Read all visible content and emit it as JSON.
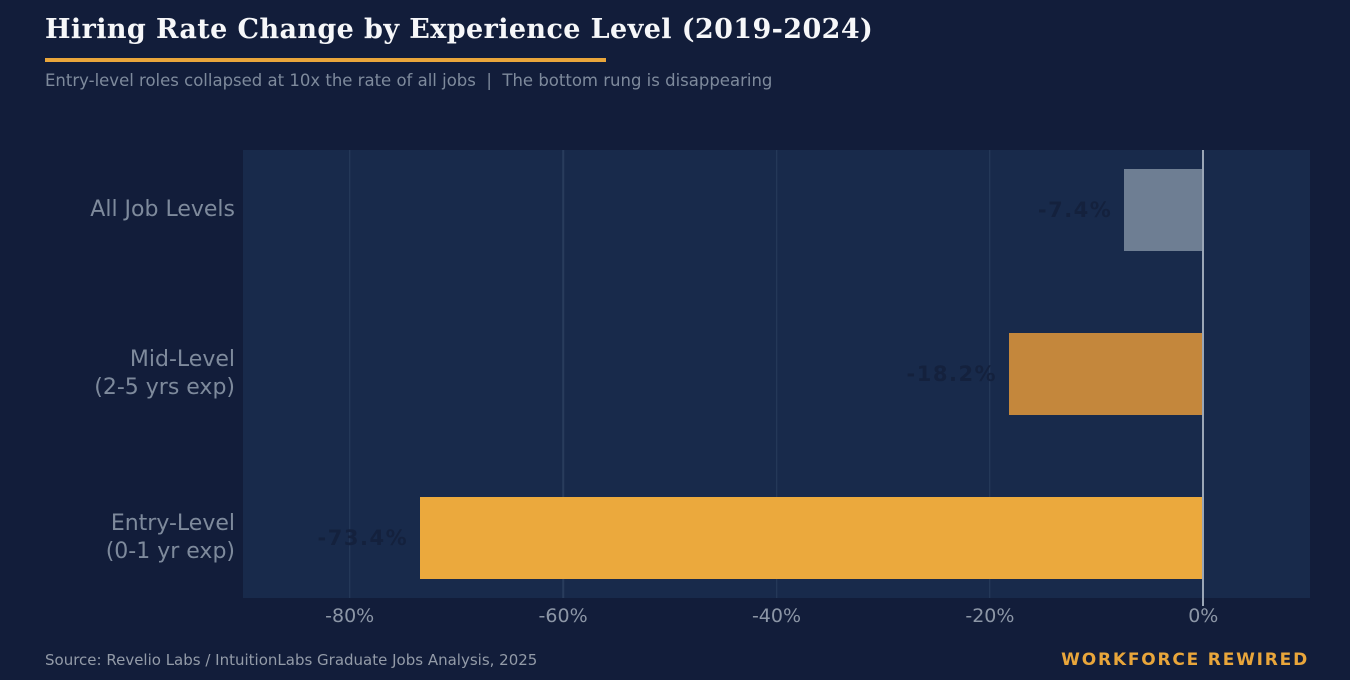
{
  "header": {
    "title": "Hiring Rate Change by Experience Level (2019-2024)",
    "subtitle": "Entry-level roles collapsed at 10x the rate of all jobs  |  The bottom rung is disappearing"
  },
  "footer": {
    "source": "Source: Revelio Labs / IntuitionLabs Graduate Jobs Analysis, 2025",
    "brand": "WORKFORCE REWIRED"
  },
  "colors": {
    "background": "#121D3A",
    "plot_background": "#182A4B",
    "accent_gold": "#E9A63B",
    "text_title": "#F6F7F9",
    "text_muted": "#7E8A9C",
    "value_label": "#14213D",
    "zero_line": "#9AA6B6",
    "bar_all_levels": "#6E7E93",
    "bar_mid_level": "#C4873C",
    "bar_entry_level": "#EBA93D"
  },
  "chart_data": {
    "type": "bar",
    "orientation": "horizontal",
    "title": "Hiring Rate Change by Experience Level (2019-2024)",
    "subtitle": "Entry-level roles collapsed at 10x the rate of all jobs  |  The bottom rung is disappearing",
    "xlabel": "",
    "ylabel": "",
    "categories": [
      [
        "All Job Levels"
      ],
      [
        "Mid-Level",
        "(2-5 yrs exp)"
      ],
      [
        "Entry-Level",
        "(0-1 yr exp)"
      ]
    ],
    "category_slugs": [
      "all-job-levels",
      "mid-level",
      "entry-level"
    ],
    "values": [
      -7.4,
      -18.2,
      -73.4
    ],
    "value_labels": [
      "-7.4%",
      "-18.2%",
      "-73.4%"
    ],
    "bar_colors": [
      "#6E7E93",
      "#C4873C",
      "#EBA93D"
    ],
    "unit": "%",
    "xlim": [
      -90,
      10
    ],
    "xticks": [
      {
        "value": -80,
        "label": "-80%"
      },
      {
        "value": -60,
        "label": "-60%"
      },
      {
        "value": -40,
        "label": "-40%"
      },
      {
        "value": -20,
        "label": "-20%"
      },
      {
        "value": 0,
        "label": "0%"
      }
    ],
    "grid": "vertical",
    "legend": "none",
    "zero_baseline": true
  }
}
